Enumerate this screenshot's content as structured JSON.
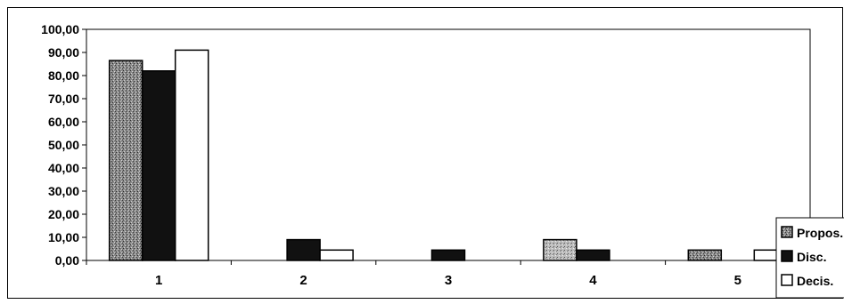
{
  "chart_data": {
    "type": "bar",
    "categories": [
      "1",
      "2",
      "3",
      "4",
      "5"
    ],
    "series": [
      {
        "name": "Propos.",
        "values": [
          86.5,
          0,
          0,
          9.0,
          4.5
        ],
        "color": "#7a7a7a",
        "pattern": "speckled-dark"
      },
      {
        "name": "Disc.",
        "values": [
          82.0,
          9.0,
          4.5,
          4.5,
          0
        ],
        "color": "#111111",
        "pattern": "solid-black"
      },
      {
        "name": "Decis.",
        "values": [
          91.0,
          4.5,
          0,
          0,
          4.5
        ],
        "color": "#ffffff",
        "pattern": "white"
      }
    ],
    "ylim": [
      0,
      100
    ],
    "yticks": [
      "0,00",
      "10,00",
      "20,00",
      "30,00",
      "40,00",
      "50,00",
      "60,00",
      "70,00",
      "80,00",
      "90,00",
      "100,00"
    ],
    "grid": false,
    "legend_position": "right-bottom",
    "title": "",
    "xlabel": "",
    "ylabel": ""
  }
}
